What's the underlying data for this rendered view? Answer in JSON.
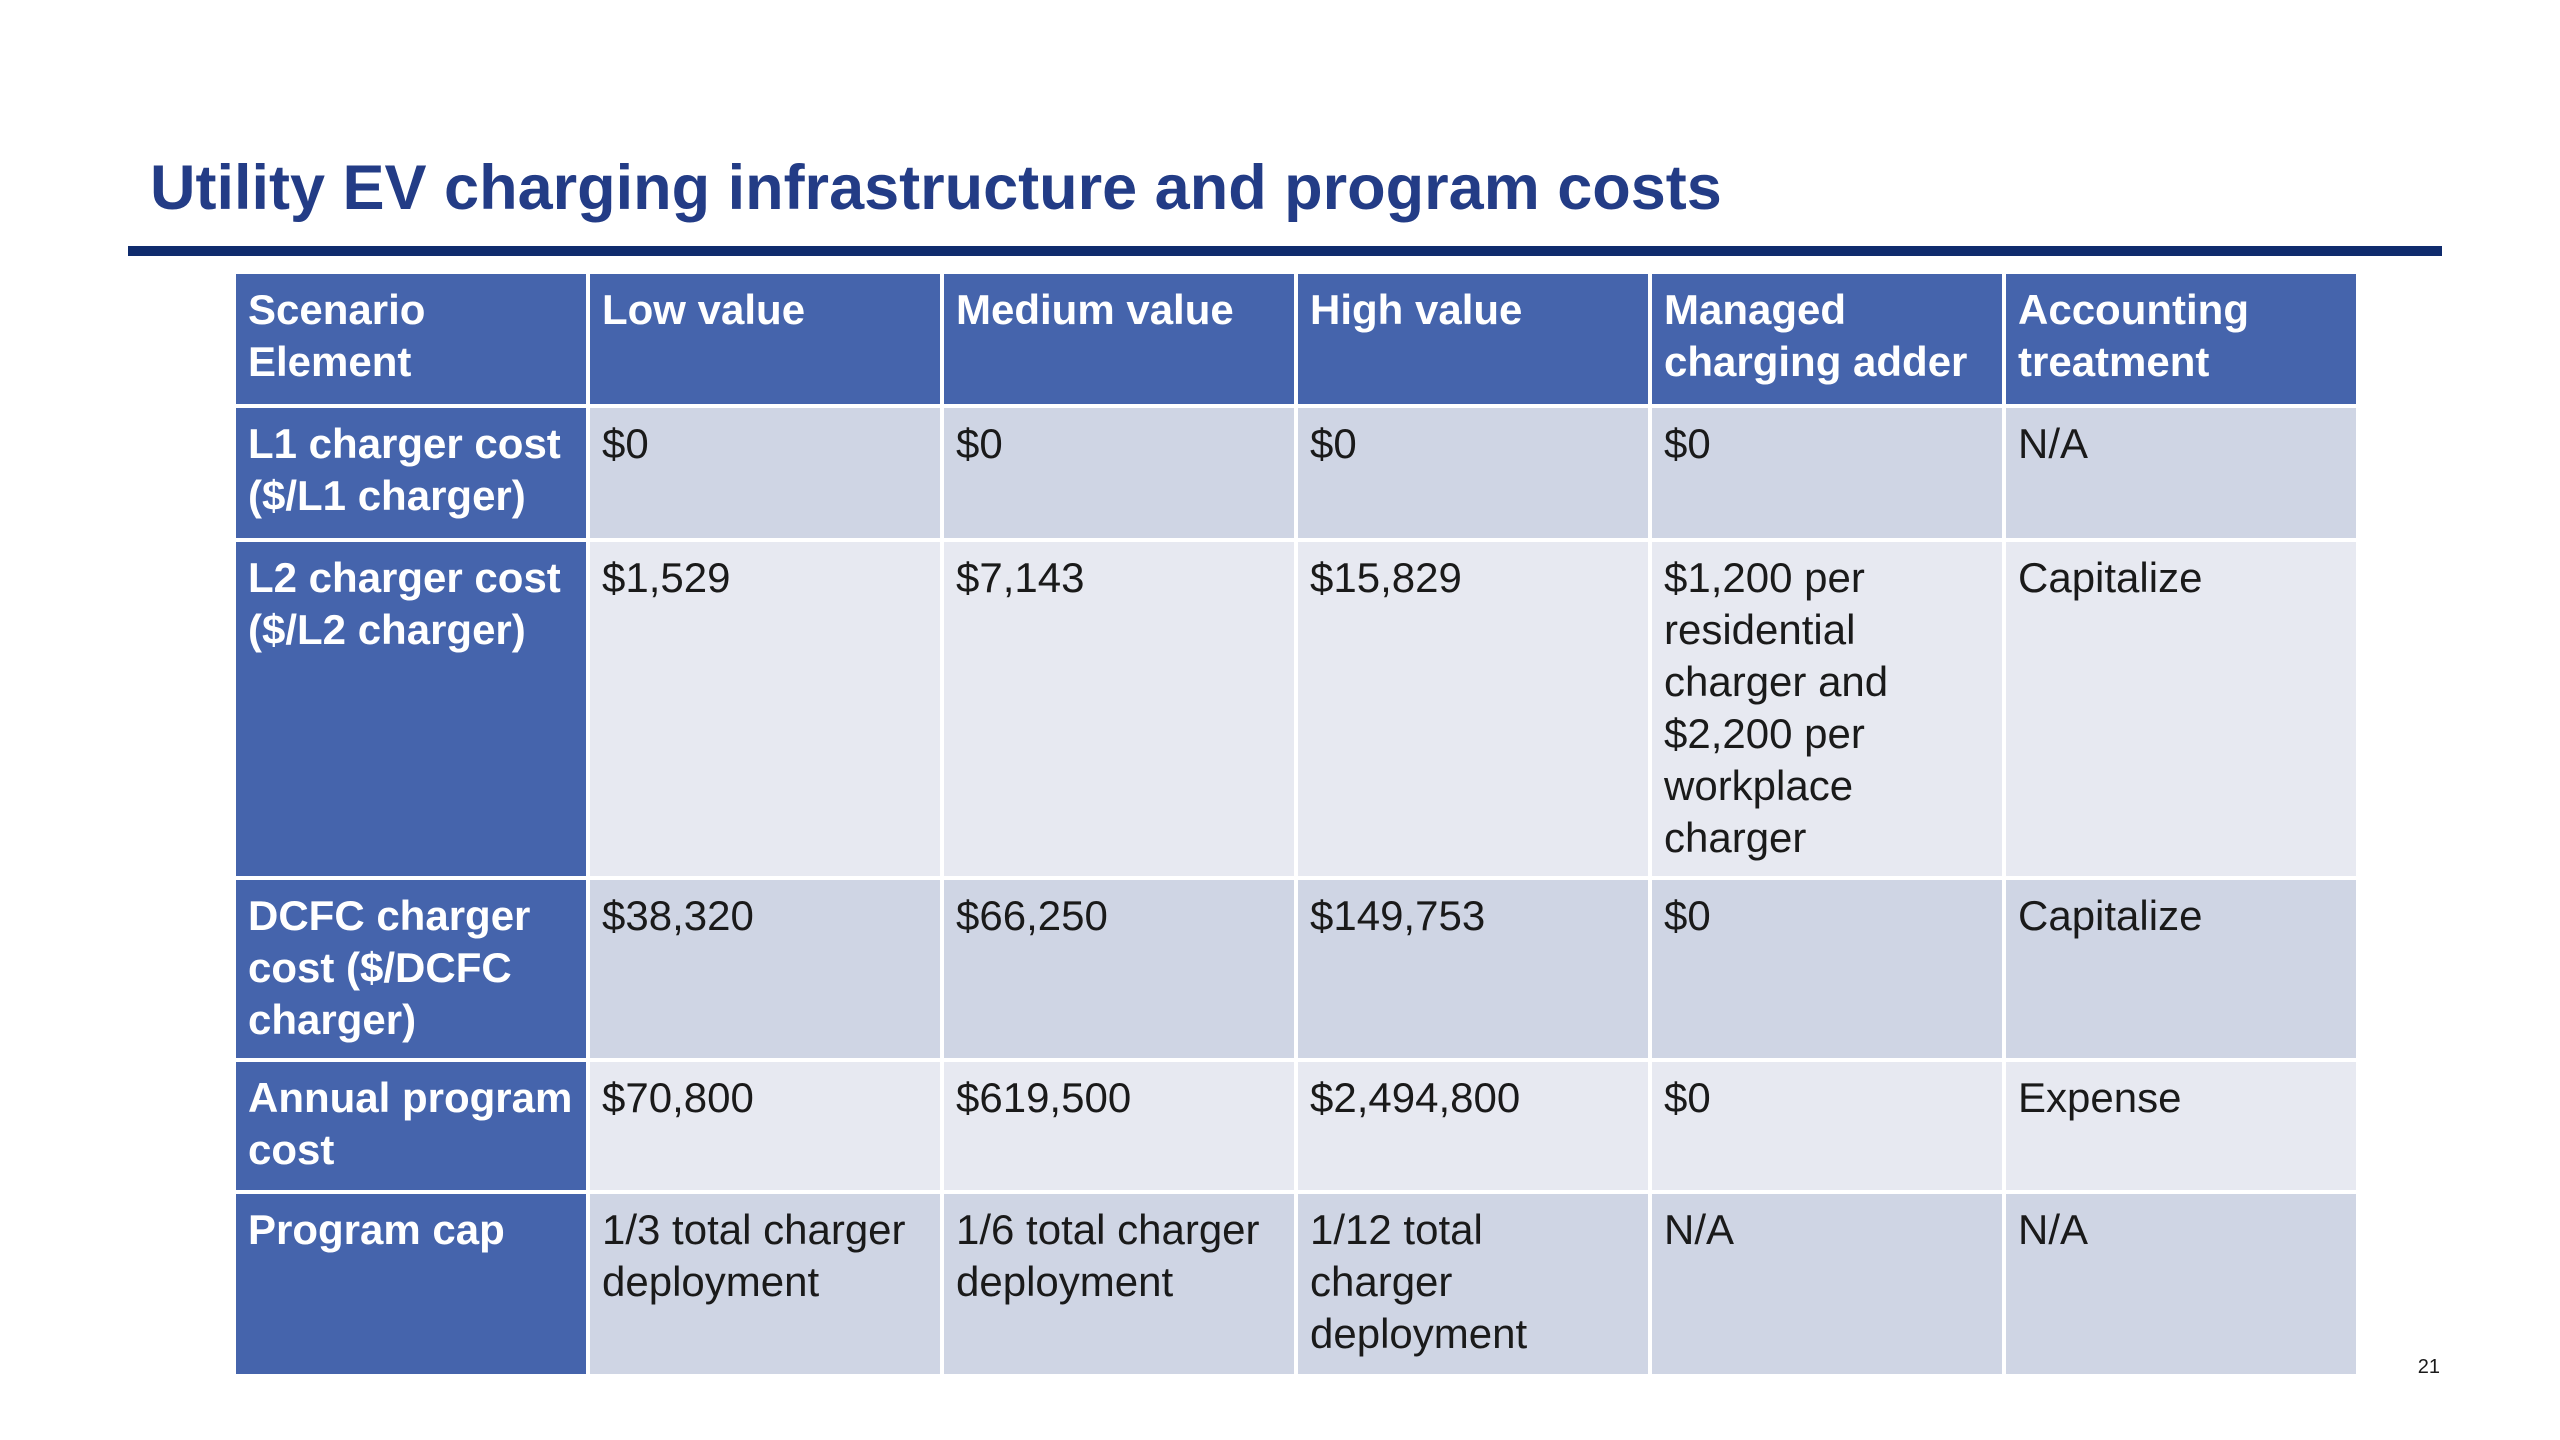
{
  "slide": {
    "title": "Utility EV charging infrastructure and program costs",
    "page_number": "21",
    "colors": {
      "title": "#233c86",
      "rule": "#0f2b6d",
      "header_fill": "#4564ac",
      "row_fill_dark": "#cfd5e4",
      "row_fill_light": "#e7e9f1"
    }
  },
  "table": {
    "headers": [
      "Scenario Element",
      "Low value",
      "Medium value",
      "High value",
      "Managed charging adder",
      "Accounting treatment"
    ],
    "rows": [
      {
        "element": "L1 charger cost ($/L1 charger)",
        "low": "$0",
        "medium": "$0",
        "high": "$0",
        "managed": "$0",
        "accounting": "N/A"
      },
      {
        "element": "L2 charger cost ($/L2 charger)",
        "low": "$1,529",
        "medium": "$7,143",
        "high": "$15,829",
        "managed": "$1,200 per residential charger and $2,200 per workplace charger",
        "accounting": "Capitalize"
      },
      {
        "element": "DCFC charger cost ($/DCFC charger)",
        "low": "$38,320",
        "medium": "$66,250",
        "high": "$149,753",
        "managed": "$0",
        "accounting": "Capitalize"
      },
      {
        "element": "Annual program cost",
        "low": "$70,800",
        "medium": "$619,500",
        "high": "$2,494,800",
        "managed": "$0",
        "accounting": "Expense"
      },
      {
        "element": "Program cap",
        "low": "1/3 total charger deployment",
        "medium": "1/6 total charger deployment",
        "high": "1/12 total charger deployment",
        "managed": "N/A",
        "accounting": "N/A"
      }
    ]
  }
}
